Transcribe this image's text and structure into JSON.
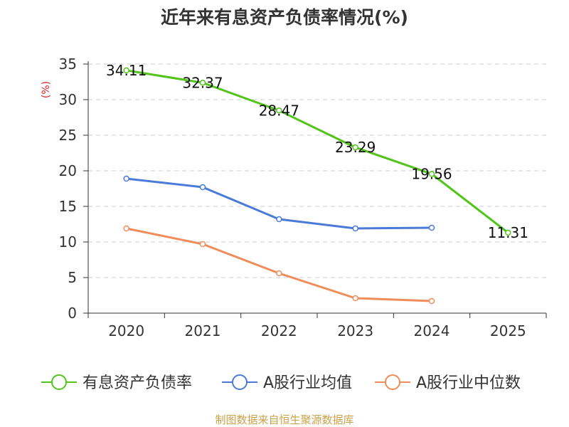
{
  "chart_data": {
    "type": "line",
    "title": "近年来有息资产负债率情况(%)",
    "ylabel": "(%)",
    "xlabel": "",
    "categories": [
      "2020",
      "2021",
      "2022",
      "2023",
      "2024",
      "2025"
    ],
    "ylim": [
      0,
      35
    ],
    "yticks": [
      0,
      5,
      10,
      15,
      20,
      25,
      30,
      35
    ],
    "grid": true,
    "legend_position": "bottom",
    "series": [
      {
        "name": "有息资产负债率",
        "color": "#52c41a",
        "values": [
          34.11,
          32.37,
          28.47,
          23.29,
          19.56,
          11.31
        ],
        "labels": [
          "34.11",
          "32.37",
          "28.47",
          "23.29",
          "19.56",
          "11.31"
        ]
      },
      {
        "name": "A股行业均值",
        "color": "#4a7bd8",
        "values": [
          18.9,
          17.7,
          13.2,
          11.9,
          12.0,
          null
        ]
      },
      {
        "name": "A股行业中位数",
        "color": "#f08c5a",
        "values": [
          11.9,
          9.7,
          5.6,
          2.1,
          1.7,
          null
        ]
      }
    ],
    "source": "制图数据来自恒生聚源数据库"
  }
}
